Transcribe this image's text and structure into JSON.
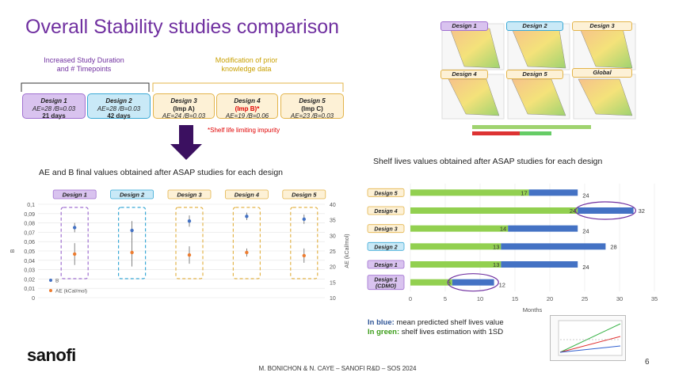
{
  "title": "Overall Stability studies comparison",
  "brace_left_label": "Increased Study Duration\nand # Timepoints",
  "brace_right_label": "Modification of prior\nknowledge data",
  "designs": [
    {
      "name": "Design 1",
      "line1": "AE=28 /B=0.03",
      "line2": "21 days",
      "fill": "#d9c3ef",
      "border": "#a070d0"
    },
    {
      "name": "Design 2",
      "line1": "AE=28 /B=0.03",
      "line2": "42 days",
      "fill": "#c9e9f7",
      "border": "#3aa9d6"
    },
    {
      "name": "Design 3",
      "line1": "(Imp A)",
      "line2": "AE=24 /B=0.03",
      "fill": "#fdf1d6",
      "border": "#e3b44a"
    },
    {
      "name": "Design 4",
      "line1": "(Imp B)*",
      "line2": "AE=19 /B=0.06",
      "fill": "#fdf1d6",
      "border": "#e3b44a"
    },
    {
      "name": "Design 5",
      "line1": "(Imp C)",
      "line2": "AE=23 /B=0.03",
      "fill": "#fdf1d6",
      "border": "#e3b44a"
    }
  ],
  "note": "*Shelf life limiting impurity",
  "ae_title": "AE and B final values obtained after ASAP studies for each design",
  "shelf_title": "Shelf lives values obtained after ASAP studies for each design",
  "heatmap_labels": [
    "Design 1",
    "Design 2",
    "Design 3",
    "Design 4",
    "Design 5",
    "Global"
  ],
  "blue_note_label": "In blue:",
  "blue_note_text": " mean predicted shelf lives value",
  "green_note_label": "In green:",
  "green_note_text": " shelf lives estimation with 1SD",
  "footer": "M. BONICHON & N. CAYE – SANOFI R&D – SOS 2024",
  "page_number": "6",
  "logo": "sanofi",
  "colors": {
    "purple": "#7030a0",
    "blue": "#4472c4",
    "green": "#92d050",
    "orange": "#ed7d31",
    "red": "#e00000"
  },
  "chart_data": [
    {
      "type": "scatter",
      "title": "AE and B final values obtained after ASAP studies for each design",
      "categories": [
        "Design 1",
        "Design 2",
        "Design 3",
        "Design 4",
        "Design 5"
      ],
      "yaxis_left": {
        "label": "B",
        "ticks": [
          "0",
          "0,01",
          "0,02",
          "0,03",
          "0,04",
          "0,05",
          "0,06",
          "0,07",
          "0,08",
          "0,09",
          "0,1"
        ],
        "range": [
          0,
          0.1
        ]
      },
      "yaxis_right": {
        "label": "AE (kCal/mol)",
        "ticks": [
          "10",
          "15",
          "20",
          "25",
          "30",
          "35",
          "40"
        ],
        "range": [
          10,
          40
        ]
      },
      "series": [
        {
          "name": "B",
          "color": "#4472c4",
          "values": [
            0.075,
            0.072,
            0.082,
            0.087,
            0.084
          ],
          "err": [
            0.005,
            0.01,
            0.006,
            0.004,
            0.005
          ]
        },
        {
          "name": "AE (kCal/mol)",
          "color": "#ed7d31",
          "values": [
            24,
            24.5,
            23.7,
            24.5,
            23.5
          ],
          "err": [
            3.5,
            4.5,
            2.8,
            1.3,
            2.3
          ]
        }
      ],
      "legend_position": "bottom-left"
    },
    {
      "type": "bar",
      "orientation": "horizontal",
      "title": "Shelf lives values obtained after ASAP studies for each design",
      "categories": [
        "Design 5",
        "Design 4",
        "Design 3",
        "Design 2",
        "Design 1",
        "Design 1\n(CDMO)"
      ],
      "green_values": [
        17,
        24,
        14,
        13,
        13,
        6
      ],
      "blue_values": [
        24,
        32,
        24,
        28,
        24,
        12
      ],
      "blue_value_labels": [
        "24",
        "32",
        "24",
        "28",
        "24",
        "12"
      ],
      "green_value_labels": [
        "17",
        "24",
        "14",
        "13",
        "13",
        "6"
      ],
      "xlabel": "Months",
      "xticks": [
        "0",
        "5",
        "10",
        "15",
        "20",
        "25",
        "30",
        "35"
      ],
      "xlim": [
        0,
        35
      ]
    }
  ]
}
